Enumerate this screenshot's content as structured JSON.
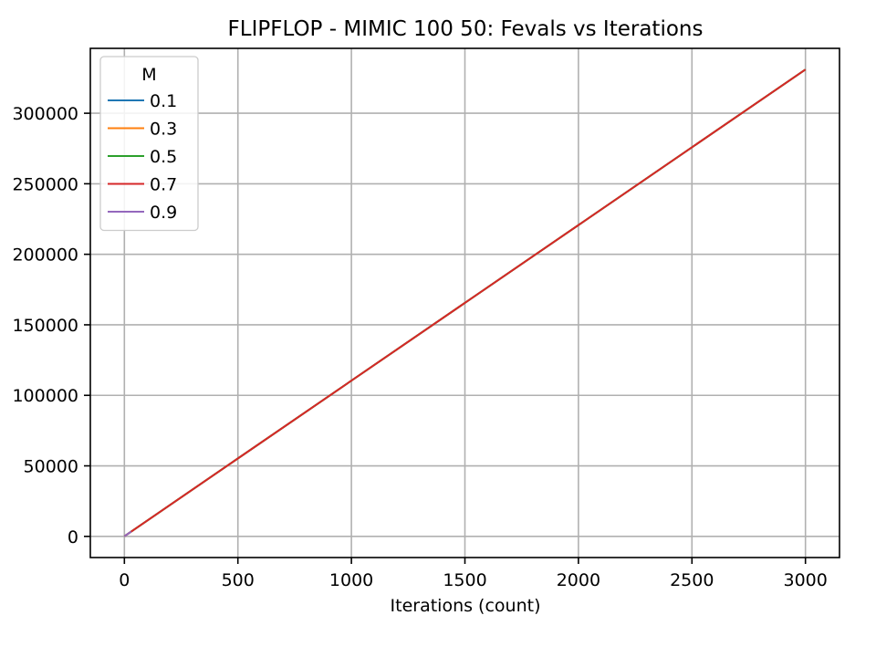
{
  "chart_data": {
    "type": "line",
    "title": "FLIPFLOP - MIMIC 100 50: Fevals vs Iterations",
    "xlabel": "Iterations (count)",
    "ylabel": "",
    "xlim": [
      -150,
      3150
    ],
    "ylim": [
      -15000,
      346000
    ],
    "xticks": [
      0,
      500,
      1000,
      1500,
      2000,
      2500,
      3000
    ],
    "yticks": [
      0,
      50000,
      100000,
      150000,
      200000,
      250000,
      300000
    ],
    "grid": true,
    "legend": {
      "title": "M",
      "placement": "top-left"
    },
    "series": [
      {
        "name": "0.1",
        "color": "#1f77b4",
        "x": [
          0,
          3000
        ],
        "y": [
          110,
          331000
        ]
      },
      {
        "name": "0.3",
        "color": "#ff7f0e",
        "x": [
          0,
          3000
        ],
        "y": [
          110,
          331000
        ]
      },
      {
        "name": "0.5",
        "color": "#2ca02c",
        "x": [
          0,
          3000
        ],
        "y": [
          110,
          331000
        ]
      },
      {
        "name": "0.7",
        "color": "#d62728",
        "x": [
          0,
          3000
        ],
        "y": [
          110,
          331000
        ]
      },
      {
        "name": "0.9",
        "color": "#9467bd",
        "x": [
          0,
          30
        ],
        "y": [
          110,
          3400
        ]
      }
    ]
  }
}
